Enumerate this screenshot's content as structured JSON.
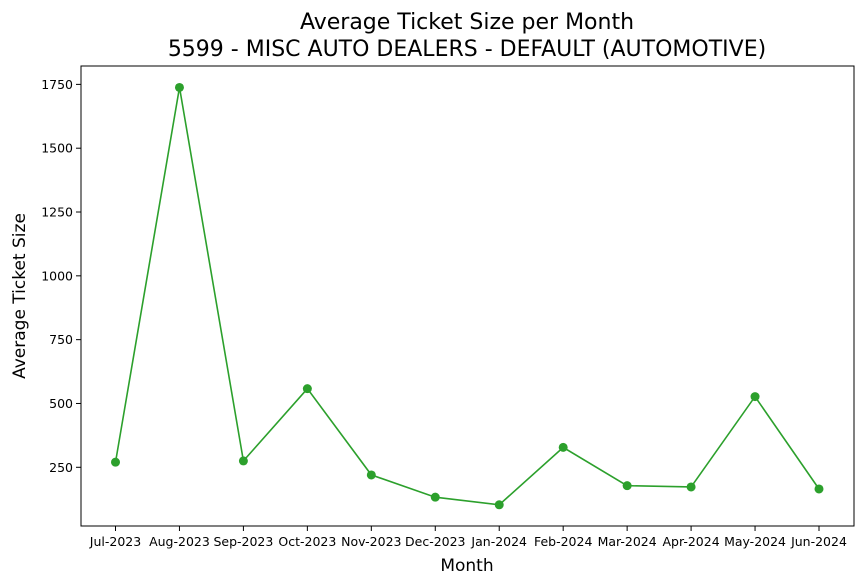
{
  "chart_data": {
    "type": "line",
    "title_lines": [
      "Average Ticket Size per Month",
      "5599 - MISC AUTO DEALERS - DEFAULT (AUTOMOTIVE)"
    ],
    "xlabel": "Month",
    "ylabel": "Average Ticket Size",
    "categories": [
      "Jul-2023",
      "Aug-2023",
      "Sep-2023",
      "Oct-2023",
      "Nov-2023",
      "Dec-2023",
      "Jan-2024",
      "Feb-2024",
      "Mar-2024",
      "Apr-2024",
      "May-2024",
      "Jun-2024"
    ],
    "values": [
      270,
      1738,
      275,
      558,
      220,
      133,
      103,
      328,
      178,
      173,
      527,
      165
    ],
    "yticks": [
      250,
      500,
      750,
      1000,
      1250,
      1500,
      1750
    ],
    "ylim": [
      20,
      1822
    ],
    "grid": false,
    "color": "#2ca02c"
  }
}
